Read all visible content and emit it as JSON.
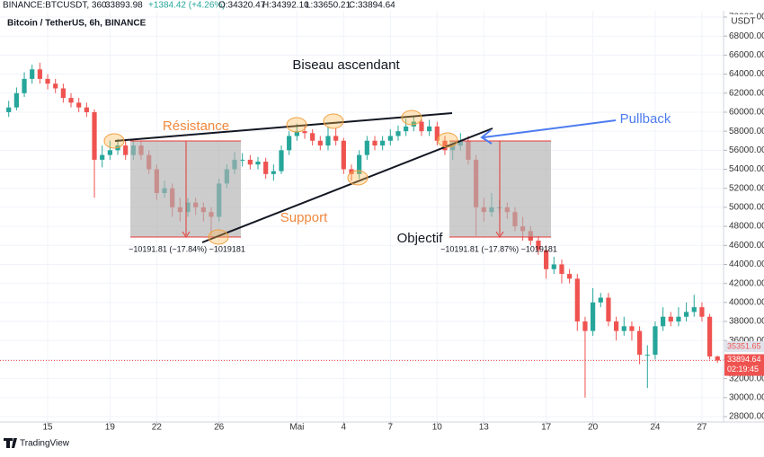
{
  "chart_data": {
    "type": "candlestick",
    "title": "Bitcoin / TetherUS, 6h, BINANCE",
    "header": {
      "symbol": "BINANCE:BTCUSDT, 360",
      "last": "33893.98",
      "change": "+1384.42 (+4.26%)",
      "o": "O:34320.47",
      "h": "H:34392.10",
      "l": "L:33650.21",
      "c": "C:33894.64"
    },
    "currency": "USDT",
    "up_color": "#26a69a",
    "down_color": "#ef5350",
    "grid": true,
    "open": [
      60000,
      60500,
      62000,
      63500,
      64500,
      63500,
      63000,
      62500,
      61500,
      61000,
      60500,
      60000,
      55000,
      55500,
      56000,
      56500,
      55500,
      56500,
      55500,
      54000,
      51500,
      52000,
      50000,
      49500,
      50500,
      50000,
      49500,
      49000,
      52500,
      54000,
      55000,
      55000,
      54500,
      54800,
      53500,
      53800,
      56000,
      57500,
      58000,
      57800,
      57000,
      56500,
      57500,
      57000,
      54000,
      53500,
      55500,
      57000,
      56500,
      57000,
      57500,
      58000,
      58500,
      59000,
      58000,
      58500,
      57000,
      56000,
      56500,
      57000,
      55000,
      50000,
      49500,
      50000,
      50000,
      49500,
      48000,
      47500,
      46500,
      45500,
      43500,
      44000,
      43000,
      42500,
      38000,
      37000,
      40000,
      40500,
      38000,
      37000,
      37500,
      37000,
      34500,
      34500,
      37500,
      38500,
      38000,
      38500,
      39000,
      39500,
      38500,
      34320.47
    ],
    "high": [
      61200,
      62600,
      64200,
      65000,
      65200,
      64000,
      63500,
      63000,
      62000,
      61500,
      61000,
      60300,
      56500,
      57000,
      57200,
      57000,
      57000,
      57000,
      56000,
      54500,
      52800,
      52500,
      51000,
      51000,
      51000,
      50500,
      50000,
      53000,
      54500,
      55800,
      55700,
      55500,
      55300,
      55200,
      54500,
      56500,
      58000,
      58800,
      58500,
      58200,
      57500,
      58500,
      58300,
      57300,
      54500,
      56000,
      57500,
      57500,
      57500,
      58200,
      58600,
      59300,
      59600,
      59300,
      59200,
      59000,
      57500,
      57000,
      57800,
      57500,
      55500,
      51000,
      51500,
      50800,
      50500,
      50000,
      49000,
      48000,
      47000,
      46000,
      44800,
      44500,
      43500,
      43000,
      38500,
      41500,
      41000,
      41000,
      38500,
      38500,
      38000,
      37500,
      35500,
      38000,
      39500,
      39000,
      39500,
      40000,
      40800,
      40000,
      38800,
      34392.1
    ],
    "low": [
      59500,
      60200,
      61600,
      63000,
      63000,
      62400,
      62000,
      61000,
      60500,
      60000,
      59500,
      51000,
      54200,
      55000,
      55500,
      55000,
      55000,
      55000,
      53500,
      50800,
      51000,
      49000,
      48500,
      49000,
      49200,
      48500,
      47000,
      48500,
      52000,
      53500,
      54300,
      54000,
      54000,
      53000,
      52800,
      53500,
      55500,
      57000,
      57200,
      56500,
      56000,
      56000,
      56500,
      53500,
      52800,
      53000,
      55000,
      56000,
      56000,
      56500,
      57000,
      57500,
      58000,
      57500,
      57500,
      56500,
      55500,
      55000,
      56000,
      54500,
      47000,
      48500,
      49000,
      49300,
      48800,
      47500,
      46500,
      46000,
      45000,
      42500,
      43000,
      42000,
      42000,
      37000,
      30000,
      36500,
      39500,
      37500,
      36000,
      36500,
      36000,
      33500,
      31000,
      34000,
      37000,
      37500,
      37500,
      38000,
      38500,
      38000,
      34000,
      33650.21
    ],
    "close": [
      60500,
      62000,
      63500,
      64500,
      63500,
      63000,
      62500,
      61500,
      61000,
      60500,
      60000,
      55000,
      55500,
      56000,
      56500,
      55500,
      56500,
      55500,
      54000,
      51500,
      52000,
      50000,
      49500,
      50500,
      50000,
      49500,
      49000,
      52500,
      54000,
      55000,
      55000,
      54500,
      54800,
      53500,
      53800,
      56000,
      57500,
      58000,
      57800,
      57000,
      56500,
      57500,
      57000,
      54000,
      53500,
      55500,
      57000,
      56500,
      57000,
      57500,
      58000,
      58500,
      59000,
      58000,
      58500,
      57000,
      56000,
      56500,
      57000,
      55000,
      50000,
      49500,
      50000,
      50000,
      49500,
      48000,
      47500,
      46500,
      45500,
      43500,
      44000,
      43000,
      42500,
      38000,
      37000,
      40000,
      40500,
      38000,
      37000,
      37500,
      37000,
      34500,
      34500,
      37500,
      38500,
      38000,
      38500,
      39000,
      39500,
      38500,
      34320.47,
      33894.64
    ],
    "xlim": [
      -1.12,
      91.2
    ],
    "xticks": [
      {
        "value": 5,
        "label": "15"
      },
      {
        "value": 13,
        "label": "19"
      },
      {
        "value": 19,
        "label": "22"
      },
      {
        "value": 27,
        "label": "26"
      },
      {
        "value": 37,
        "label": "Mai"
      },
      {
        "value": 43,
        "label": "4"
      },
      {
        "value": 49,
        "label": "7"
      },
      {
        "value": 55,
        "label": "10"
      },
      {
        "value": 61,
        "label": "13"
      },
      {
        "value": 69,
        "label": "17"
      },
      {
        "value": 75,
        "label": "20"
      },
      {
        "value": 83,
        "label": "24"
      },
      {
        "value": 89,
        "label": "27"
      }
    ],
    "ylim": [
      27434,
      70661
    ],
    "yticks": [
      {
        "value": 28000,
        "label": "28000.00"
      },
      {
        "value": 30000,
        "label": "30000.00"
      },
      {
        "value": 32000,
        "label": "32000.00"
      },
      {
        "value": 34000,
        "label": "34000.00"
      },
      {
        "value": 36000,
        "label": "36000.00"
      },
      {
        "value": 38000,
        "label": "38000.00"
      },
      {
        "value": 40000,
        "label": "40000.00"
      },
      {
        "value": 42000,
        "label": "42000.00"
      },
      {
        "value": 44000,
        "label": "44000.00"
      },
      {
        "value": 46000,
        "label": "46000.00"
      },
      {
        "value": 48000,
        "label": "48000.00"
      },
      {
        "value": 50000,
        "label": "50000.00"
      },
      {
        "value": 52000,
        "label": "52000.00"
      },
      {
        "value": 54000,
        "label": "54000.00"
      },
      {
        "value": 56000,
        "label": "56000.00"
      },
      {
        "value": 58000,
        "label": "58000.00"
      },
      {
        "value": 60000,
        "label": "60000.00"
      },
      {
        "value": 62000,
        "label": "62000.00"
      },
      {
        "value": 64000,
        "label": "64000.00"
      },
      {
        "value": 66000,
        "label": "66000.00"
      },
      {
        "value": 68000,
        "label": "68000.00"
      },
      {
        "value": 70000,
        "label": "70000.00"
      }
    ],
    "reference_price": 35351.65,
    "countdown": "02:19:45",
    "annotations": {
      "pattern": "Biseau ascendant",
      "resistance": "Résistance",
      "support": "Support",
      "pullback": "Pullback",
      "target": "Objectif",
      "measure_1": "−10191.81 (−17.84%) −1019181",
      "measure_2": "−10191.81 (−17.87%) −1019181"
    },
    "brand": "TradingView"
  }
}
